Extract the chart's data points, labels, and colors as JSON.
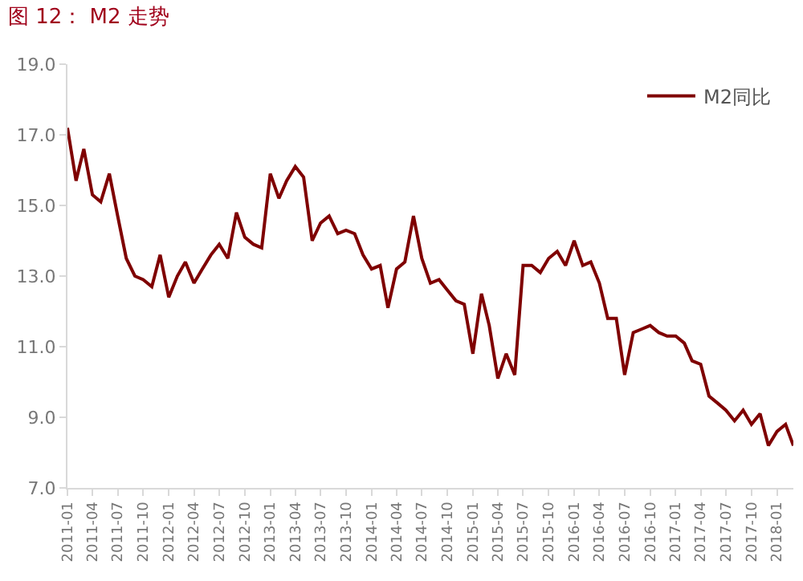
{
  "chart_data": {
    "type": "line",
    "title": "图 12： M2 走势",
    "x": [
      "2011-01",
      "2011-02",
      "2011-03",
      "2011-04",
      "2011-05",
      "2011-06",
      "2011-07",
      "2011-08",
      "2011-09",
      "2011-10",
      "2011-11",
      "2011-12",
      "2012-01",
      "2012-02",
      "2012-03",
      "2012-04",
      "2012-05",
      "2012-06",
      "2012-07",
      "2012-08",
      "2012-09",
      "2012-10",
      "2012-11",
      "2012-12",
      "2013-01",
      "2013-02",
      "2013-03",
      "2013-04",
      "2013-05",
      "2013-06",
      "2013-07",
      "2013-08",
      "2013-09",
      "2013-10",
      "2013-11",
      "2013-12",
      "2014-01",
      "2014-02",
      "2014-03",
      "2014-04",
      "2014-05",
      "2014-06",
      "2014-07",
      "2014-08",
      "2014-09",
      "2014-10",
      "2014-11",
      "2014-12",
      "2015-01",
      "2015-02",
      "2015-03",
      "2015-04",
      "2015-05",
      "2015-06",
      "2015-07",
      "2015-08",
      "2015-09",
      "2015-10",
      "2015-11",
      "2015-12",
      "2016-01",
      "2016-02",
      "2016-03",
      "2016-04",
      "2016-05",
      "2016-06",
      "2016-07",
      "2016-08",
      "2016-09",
      "2016-10",
      "2016-11",
      "2016-12",
      "2017-01",
      "2017-02",
      "2017-03",
      "2017-04",
      "2017-05",
      "2017-06",
      "2017-07",
      "2017-08",
      "2017-09",
      "2017-10",
      "2017-11",
      "2017-12",
      "2018-01",
      "2018-02",
      "2018-03"
    ],
    "series": [
      {
        "name": "M2同比",
        "color": "#7f0000",
        "values": [
          17.2,
          15.7,
          16.6,
          15.3,
          15.1,
          15.9,
          14.7,
          13.5,
          13.0,
          12.9,
          12.7,
          13.6,
          12.4,
          13.0,
          13.4,
          12.8,
          13.2,
          13.6,
          13.9,
          13.5,
          14.8,
          14.1,
          13.9,
          13.8,
          15.9,
          15.2,
          15.7,
          16.1,
          15.8,
          14.0,
          14.5,
          14.7,
          14.2,
          14.3,
          14.2,
          13.6,
          13.2,
          13.3,
          12.1,
          13.2,
          13.4,
          14.7,
          13.5,
          12.8,
          12.9,
          12.6,
          12.3,
          12.2,
          10.8,
          12.5,
          11.6,
          10.1,
          10.8,
          10.2,
          13.3,
          13.3,
          13.1,
          13.5,
          13.7,
          13.3,
          14.0,
          13.3,
          13.4,
          12.8,
          11.8,
          11.8,
          10.2,
          11.4,
          11.5,
          11.6,
          11.4,
          11.3,
          11.3,
          11.1,
          10.6,
          10.5,
          9.6,
          9.4,
          9.2,
          8.9,
          9.2,
          8.8,
          9.1,
          8.2,
          8.6,
          8.8,
          8.2
        ]
      }
    ],
    "xlim": [
      "2011-01",
      "2018-03"
    ],
    "xticks": [
      "2011-01",
      "2011-04",
      "2011-07",
      "2011-10",
      "2012-01",
      "2012-04",
      "2012-07",
      "2012-10",
      "2013-01",
      "2013-04",
      "2013-07",
      "2013-10",
      "2014-01",
      "2014-04",
      "2014-07",
      "2014-10",
      "2015-01",
      "2015-04",
      "2015-07",
      "2015-10",
      "2016-01",
      "2016-04",
      "2016-07",
      "2016-10",
      "2017-01",
      "2017-04",
      "2017-07",
      "2017-10",
      "2018-01"
    ],
    "ylim": [
      7,
      19
    ],
    "yticks": [
      {
        "value": 7,
        "label": "7.0"
      },
      {
        "value": 9,
        "label": "9.0"
      },
      {
        "value": 11,
        "label": "11.0"
      },
      {
        "value": 13,
        "label": "13.0"
      },
      {
        "value": 15,
        "label": "15.0"
      },
      {
        "value": 17,
        "label": "17.0"
      },
      {
        "value": 19,
        "label": "19.0"
      }
    ],
    "grid": false,
    "legend": "top right",
    "marker": "none",
    "line_style": "solid"
  }
}
